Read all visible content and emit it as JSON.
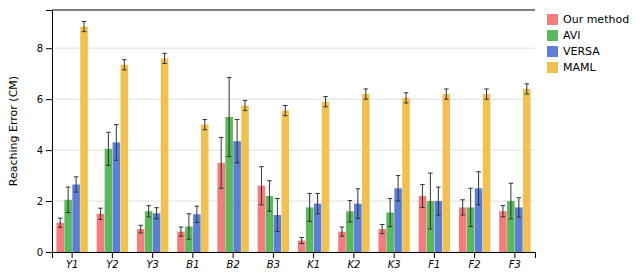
{
  "chart_data": {
    "type": "bar",
    "categories": [
      "Y1",
      "Y2",
      "Y3",
      "B1",
      "B2",
      "B3",
      "K1",
      "K2",
      "K3",
      "F1",
      "F2",
      "F3"
    ],
    "series": [
      {
        "name": "Our method",
        "color": "#f47c7c",
        "values": [
          1.15,
          1.5,
          0.9,
          0.8,
          3.5,
          2.6,
          0.45,
          0.8,
          0.9,
          2.2,
          1.75,
          1.6
        ],
        "errors": [
          0.18,
          0.22,
          0.15,
          0.18,
          1.0,
          0.75,
          0.12,
          0.18,
          0.18,
          0.45,
          0.3,
          0.22
        ]
      },
      {
        "name": "AVI",
        "color": "#5cb85c",
        "values": [
          2.05,
          4.05,
          1.6,
          1.0,
          5.3,
          2.2,
          1.75,
          1.6,
          1.55,
          2.0,
          1.75,
          2.0
        ],
        "errors": [
          0.5,
          0.65,
          0.22,
          0.5,
          1.55,
          0.6,
          0.55,
          0.42,
          0.55,
          1.1,
          0.75,
          0.7
        ]
      },
      {
        "name": "VERSA",
        "color": "#5b7fd4",
        "values": [
          2.65,
          4.3,
          1.52,
          1.48,
          4.35,
          1.45,
          1.9,
          1.9,
          2.5,
          2.0,
          2.5,
          1.75
        ],
        "errors": [
          0.3,
          0.7,
          0.22,
          0.32,
          0.85,
          0.65,
          0.4,
          0.58,
          0.5,
          0.55,
          0.65,
          0.38
        ]
      },
      {
        "name": "MAML",
        "color": "#f0c050",
        "values": [
          8.85,
          7.35,
          7.6,
          5.0,
          5.75,
          5.55,
          5.9,
          6.2,
          6.05,
          6.2,
          6.2,
          6.4
        ],
        "errors": [
          0.2,
          0.2,
          0.2,
          0.2,
          0.2,
          0.2,
          0.2,
          0.2,
          0.2,
          0.2,
          0.2,
          0.2
        ]
      }
    ],
    "ylabel": "Reaching Error (CM)",
    "ylim": [
      0,
      9.5
    ],
    "yticks": [
      0,
      2,
      4,
      6,
      8
    ],
    "grid": true,
    "legend": "upper right"
  }
}
